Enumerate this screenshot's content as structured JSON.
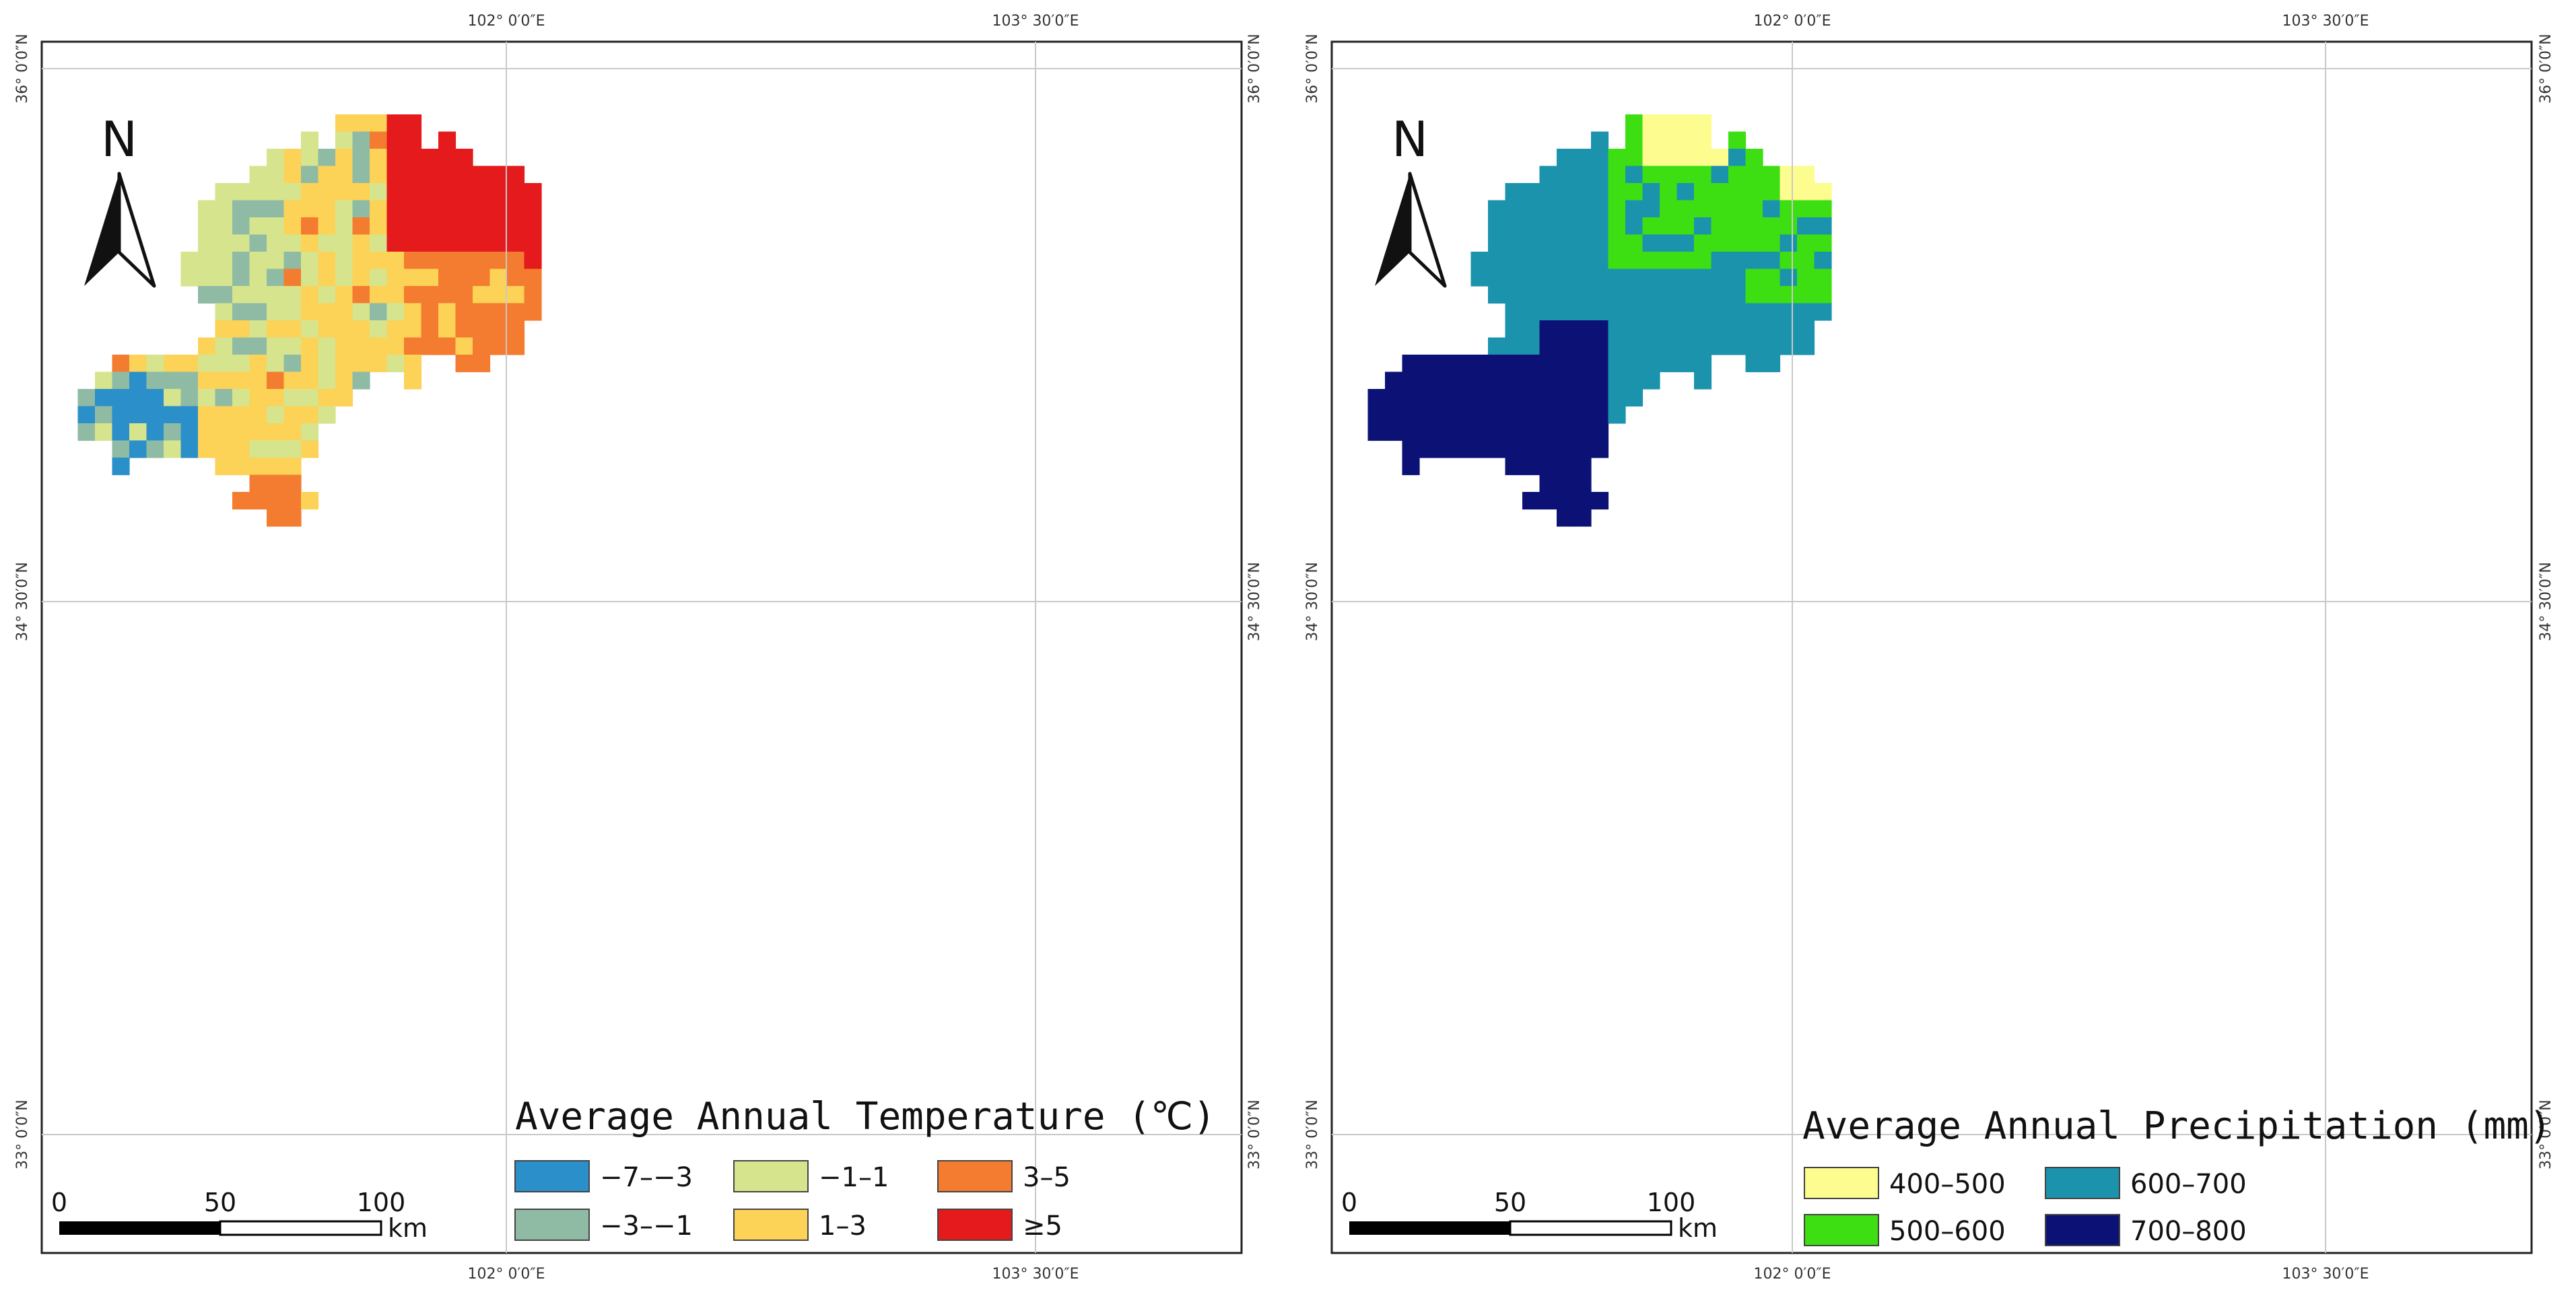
{
  "maps": [
    {
      "id": "temperature",
      "legend_title": "Average Annual Temperature (℃)",
      "classes": [
        {
          "label": "−7–−3",
          "color": "#2b8fc9"
        },
        {
          "label": "−3–−1",
          "color": "#8fbba5"
        },
        {
          "label": "−1–1",
          "color": "#d6e48e"
        },
        {
          "label": "1–3",
          "color": "#fcd257"
        },
        {
          "label": "3–5",
          "color": "#f47c30"
        },
        {
          "label": "≥5",
          "color": "#e41a1c"
        }
      ]
    },
    {
      "id": "precipitation",
      "legend_title": "Average Annual Precipitation (mm)",
      "classes": [
        {
          "label": "400–500",
          "color": "#fdfc8f"
        },
        {
          "label": "500–600",
          "color": "#3ddf12"
        },
        {
          "label": "600–700",
          "color": "#1c93ad"
        },
        {
          "label": "700–800",
          "color": "#0c1275"
        }
      ]
    }
  ],
  "graticule": {
    "lon_labels": [
      "102° 0′0″E",
      "103° 30′0″E"
    ],
    "lat_labels": [
      "36° 0′0″N",
      "34° 30′0″N",
      "33° 0′0″N"
    ]
  },
  "north_arrow": {
    "label": "N",
    "icon": "north-arrow-icon"
  },
  "scale_bar": {
    "ticks": [
      "0",
      "50",
      "100"
    ],
    "unit": "km"
  }
}
